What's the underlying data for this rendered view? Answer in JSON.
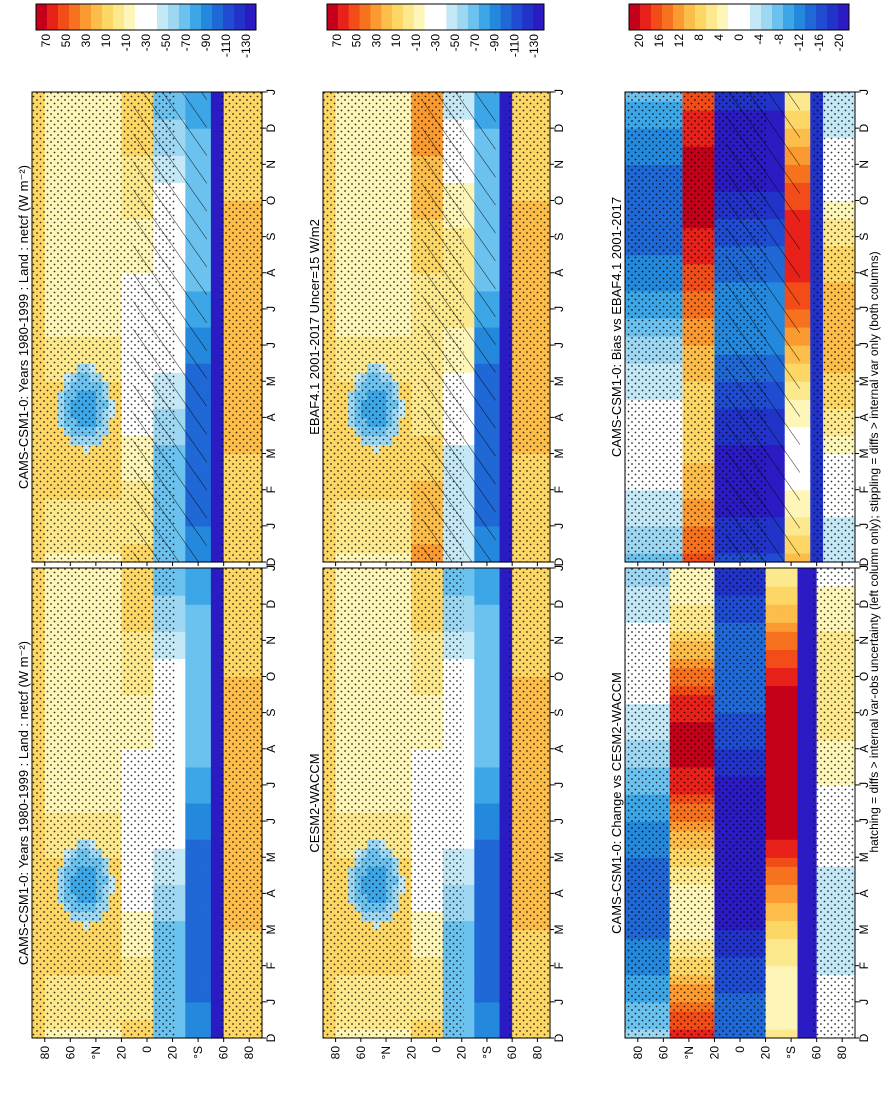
{
  "footer_note": "hatching = diffs > internal var-obs uncertainty (left column only); stippling = diffs > internal var only (both columns)",
  "chart_data": [
    {
      "type": "heatmap",
      "title": "CAMS-CSM1-0: Years 1980-1999 : Land : netcf (W m⁻²)",
      "months": [
        "D",
        "J",
        "F",
        "M",
        "A",
        "M",
        "J",
        "J",
        "A",
        "S",
        "O",
        "N",
        "D",
        "J"
      ],
      "lat_labels": [
        "80",
        "60",
        "°N",
        "20",
        "0",
        "20",
        "°S",
        "60",
        "80"
      ],
      "colorbar_labels": [
        "70",
        "50",
        "30",
        "10",
        "-10",
        "-30",
        "-50",
        "-70",
        "-90",
        "-110",
        "-130"
      ],
      "colorbar_colors": [
        "#c4001a",
        "#e8211a",
        "#f24d18",
        "#f7721f",
        "#fa9a30",
        "#fcbd4a",
        "#fdd766",
        "#fde98d",
        "#fef6b8",
        "#ffffff",
        "#ffffff",
        "#c5e8f6",
        "#9ed7f2",
        "#6cc2ee",
        "#3da6e6",
        "#2488dd",
        "#1f68d6",
        "#1f4cd0",
        "#2233c9",
        "#2b1bc2"
      ],
      "hatching": true,
      "field": "abs"
    },
    {
      "type": "heatmap",
      "title": "CAMS-CSM1-0: Years 1980-1999 : Land : netcf (W m⁻²)",
      "months": [
        "D",
        "J",
        "F",
        "M",
        "A",
        "M",
        "J",
        "J",
        "A",
        "S",
        "O",
        "N",
        "D",
        "J"
      ],
      "lat_labels": [
        "80",
        "60",
        "°N",
        "20",
        "0",
        "20",
        "°S",
        "60",
        "80"
      ],
      "colorbar_labels": [
        "70",
        "50",
        "30",
        "10",
        "-10",
        "-30",
        "-50",
        "-70",
        "-90",
        "-110",
        "-130"
      ],
      "colorbar_colors": [
        "#c4001a",
        "#e8211a",
        "#f24d18",
        "#f7721f",
        "#fa9a30",
        "#fcbd4a",
        "#fdd766",
        "#fde98d",
        "#fef6b8",
        "#ffffff",
        "#ffffff",
        "#c5e8f6",
        "#9ed7f2",
        "#6cc2ee",
        "#3da6e6",
        "#2488dd",
        "#1f68d6",
        "#1f4cd0",
        "#2233c9",
        "#2b1bc2"
      ],
      "hatching": false,
      "field": "abs"
    },
    {
      "type": "heatmap",
      "title": "EBAF4.1 2001-2017 Uncer=15 W/m2",
      "months": [
        "D",
        "J",
        "F",
        "M",
        "A",
        "M",
        "J",
        "J",
        "A",
        "S",
        "O",
        "N",
        "D",
        "J"
      ],
      "lat_labels": [
        "80",
        "60",
        "°N",
        "20",
        "0",
        "20",
        "°S",
        "60",
        "80"
      ],
      "colorbar_labels": [
        "70",
        "50",
        "30",
        "10",
        "-10",
        "-30",
        "-50",
        "-70",
        "-90",
        "-110",
        "-130"
      ],
      "colorbar_colors": [
        "#c4001a",
        "#e8211a",
        "#f24d18",
        "#f7721f",
        "#fa9a30",
        "#fcbd4a",
        "#fdd766",
        "#fde98d",
        "#fef6b8",
        "#ffffff",
        "#ffffff",
        "#c5e8f6",
        "#9ed7f2",
        "#6cc2ee",
        "#3da6e6",
        "#2488dd",
        "#1f68d6",
        "#1f4cd0",
        "#2233c9",
        "#2b1bc2"
      ],
      "hatching": true,
      "field": "obs"
    },
    {
      "type": "heatmap",
      "title": "CESM2-WACCM",
      "months": [
        "D",
        "J",
        "F",
        "M",
        "A",
        "M",
        "J",
        "J",
        "A",
        "S",
        "O",
        "N",
        "D",
        "J"
      ],
      "lat_labels": [
        "80",
        "60",
        "°N",
        "20",
        "0",
        "20",
        "°S",
        "60",
        "80"
      ],
      "colorbar_labels": [
        "70",
        "50",
        "30",
        "10",
        "-10",
        "-30",
        "-50",
        "-70",
        "-90",
        "-110",
        "-130"
      ],
      "colorbar_colors": [
        "#c4001a",
        "#e8211a",
        "#f24d18",
        "#f7721f",
        "#fa9a30",
        "#fcbd4a",
        "#fdd766",
        "#fde98d",
        "#fef6b8",
        "#ffffff",
        "#ffffff",
        "#c5e8f6",
        "#9ed7f2",
        "#6cc2ee",
        "#3da6e6",
        "#2488dd",
        "#1f68d6",
        "#1f4cd0",
        "#2233c9",
        "#2b1bc2"
      ],
      "hatching": false,
      "field": "abs"
    },
    {
      "type": "heatmap",
      "title": "CAMS-CSM1-0: Bias vs EBAF4.1 2001-2017",
      "months": [
        "D",
        "J",
        "F",
        "M",
        "A",
        "M",
        "J",
        "J",
        "A",
        "S",
        "O",
        "N",
        "D",
        "J"
      ],
      "lat_labels": [
        "80",
        "60",
        "°N",
        "20",
        "0",
        "20",
        "°S",
        "60",
        "80"
      ],
      "colorbar_labels": [
        "20",
        "16",
        "12",
        "8",
        "4",
        "0",
        "-4",
        "-8",
        "-12",
        "-16",
        "-20"
      ],
      "colorbar_colors": [
        "#c4001a",
        "#e8211a",
        "#f24d18",
        "#f7721f",
        "#fa9a30",
        "#fcbd4a",
        "#fdd766",
        "#fde98d",
        "#fef6b8",
        "#ffffff",
        "#ffffff",
        "#c5e8f6",
        "#9ed7f2",
        "#6cc2ee",
        "#3da6e6",
        "#2488dd",
        "#1f68d6",
        "#1f4cd0",
        "#2233c9",
        "#2b1bc2"
      ],
      "hatching": true,
      "field": "bias"
    },
    {
      "type": "heatmap",
      "title": "CAMS-CSM1-0: Change vs CESM2-WACCM",
      "months": [
        "D",
        "J",
        "F",
        "M",
        "A",
        "M",
        "J",
        "J",
        "A",
        "S",
        "O",
        "N",
        "D",
        "J"
      ],
      "lat_labels": [
        "80",
        "60",
        "°N",
        "20",
        "0",
        "20",
        "°S",
        "60",
        "80"
      ],
      "colorbar_labels": [
        "20",
        "16",
        "12",
        "8",
        "4",
        "0",
        "-4",
        "-8",
        "-12",
        "-16",
        "-20"
      ],
      "colorbar_colors": [
        "#c4001a",
        "#e8211a",
        "#f24d18",
        "#f7721f",
        "#fa9a30",
        "#fcbd4a",
        "#fdd766",
        "#fde98d",
        "#fef6b8",
        "#ffffff",
        "#ffffff",
        "#c5e8f6",
        "#9ed7f2",
        "#6cc2ee",
        "#3da6e6",
        "#2488dd",
        "#1f68d6",
        "#1f4cd0",
        "#2233c9",
        "#2b1bc2"
      ],
      "hatching": false,
      "field": "change"
    }
  ]
}
